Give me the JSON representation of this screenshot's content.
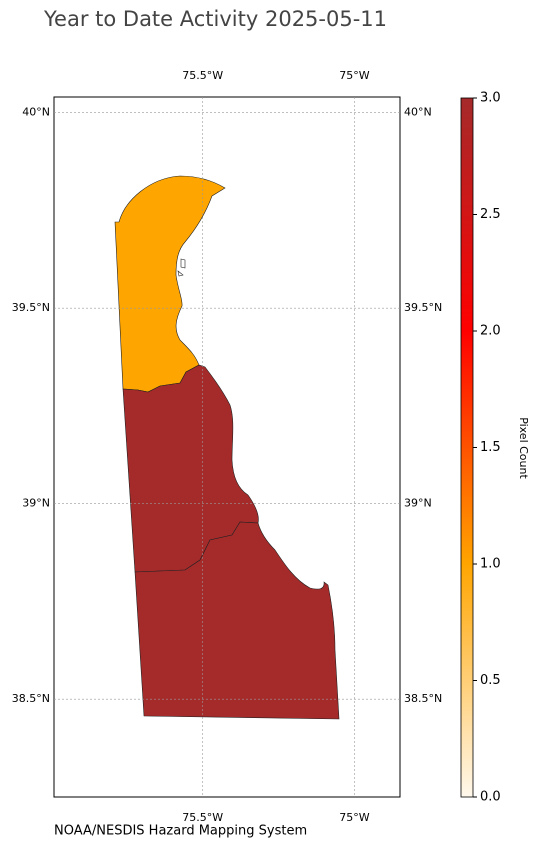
{
  "title": "Year to Date Activity 2025-05-11",
  "map": {
    "xlim": [
      -75.99,
      -74.85
    ],
    "ylim": [
      38.25,
      40.04
    ],
    "xticks": [
      {
        "value": -75.5,
        "label": "75.5°W"
      },
      {
        "value": -75,
        "label": "75°W"
      }
    ],
    "yticks": [
      {
        "value": 40,
        "label": "40°N"
      },
      {
        "value": 39.5,
        "label": "39.5°N"
      },
      {
        "value": 39,
        "label": "39°N"
      },
      {
        "value": 38.5,
        "label": "38.5°N"
      }
    ],
    "grid": true,
    "regions": [
      {
        "value": 1
      },
      {
        "value": 3
      },
      {
        "value": 3
      }
    ]
  },
  "colorbar": {
    "label": "Pixel Count",
    "lim": [
      0,
      3
    ],
    "colors": [
      "#fff8ec",
      "#ffa500",
      "#ff0000",
      "#a52a2a"
    ],
    "ticks": [
      {
        "value": 0,
        "label": "0.0"
      },
      {
        "value": 0.5,
        "label": "0.5"
      },
      {
        "value": 1,
        "label": "1.0"
      },
      {
        "value": 1.5,
        "label": "1.5"
      },
      {
        "value": 2,
        "label": "2.0"
      },
      {
        "value": 2.5,
        "label": "2.5"
      },
      {
        "value": 3,
        "label": "3.0"
      }
    ]
  },
  "credit": "NOAA/NESDIS Hazard Mapping System"
}
